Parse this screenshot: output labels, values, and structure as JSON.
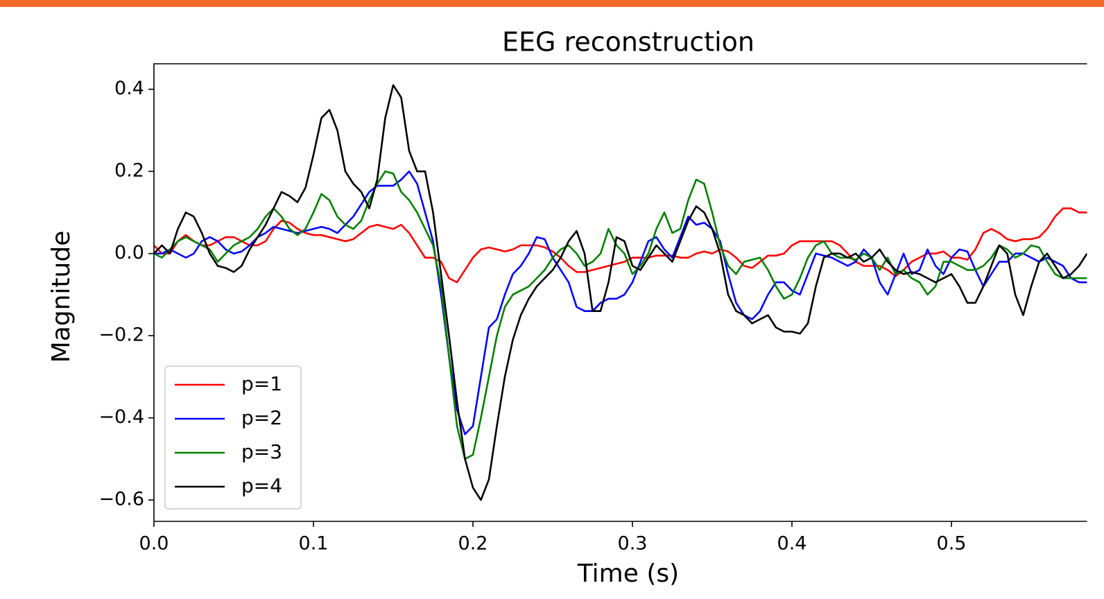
{
  "chart_data": {
    "type": "line",
    "title": "EEG reconstruction",
    "xlabel": "Time (s)",
    "ylabel": "Magnitude",
    "x": [
      0,
      0.005,
      0.01,
      0.015,
      0.02,
      0.025,
      0.03,
      0.035,
      0.04,
      0.045,
      0.05,
      0.055,
      0.06,
      0.065,
      0.07,
      0.075,
      0.08,
      0.085,
      0.09,
      0.095,
      0.1,
      0.105,
      0.11,
      0.115,
      0.12,
      0.125,
      0.13,
      0.135,
      0.14,
      0.145,
      0.15,
      0.155,
      0.16,
      0.165,
      0.17,
      0.175,
      0.18,
      0.185,
      0.19,
      0.195,
      0.2,
      0.205,
      0.21,
      0.215,
      0.22,
      0.225,
      0.23,
      0.235,
      0.24,
      0.245,
      0.25,
      0.255,
      0.26,
      0.265,
      0.27,
      0.275,
      0.28,
      0.285,
      0.29,
      0.295,
      0.3,
      0.305,
      0.31,
      0.315,
      0.32,
      0.325,
      0.33,
      0.335,
      0.34,
      0.345,
      0.35,
      0.355,
      0.36,
      0.365,
      0.37,
      0.375,
      0.38,
      0.385,
      0.39,
      0.395,
      0.4,
      0.405,
      0.41,
      0.415,
      0.42,
      0.425,
      0.43,
      0.435,
      0.44,
      0.445,
      0.45,
      0.455,
      0.46,
      0.465,
      0.47,
      0.475,
      0.48,
      0.485,
      0.49,
      0.495,
      0.5,
      0.505,
      0.51,
      0.515,
      0.52,
      0.525,
      0.53,
      0.535,
      0.54,
      0.545,
      0.55,
      0.555,
      0.56,
      0.565,
      0.57,
      0.575,
      0.58,
      0.585
    ],
    "series": [
      {
        "name": "p=1",
        "color": "#ff0000",
        "values": [
          0.02,
          0.0,
          0.0,
          0.03,
          0.045,
          0.03,
          0.02,
          0.02,
          0.03,
          0.04,
          0.04,
          0.03,
          0.02,
          0.02,
          0.03,
          0.06,
          0.08,
          0.075,
          0.06,
          0.05,
          0.045,
          0.045,
          0.04,
          0.035,
          0.03,
          0.035,
          0.05,
          0.065,
          0.07,
          0.065,
          0.06,
          0.07,
          0.05,
          0.02,
          -0.01,
          -0.01,
          -0.02,
          -0.06,
          -0.07,
          -0.04,
          -0.01,
          0.01,
          0.015,
          0.01,
          0.005,
          0.01,
          0.02,
          0.02,
          0.02,
          0.015,
          0.005,
          -0.01,
          -0.03,
          -0.045,
          -0.045,
          -0.04,
          -0.035,
          -0.03,
          -0.025,
          -0.02,
          -0.01,
          -0.01,
          -0.01,
          -0.005,
          -0.005,
          -0.005,
          -0.01,
          -0.01,
          0.0,
          0.005,
          0.0,
          0.01,
          0.005,
          -0.01,
          -0.03,
          -0.035,
          -0.02,
          -0.005,
          -0.005,
          0.0,
          0.02,
          0.03,
          0.03,
          0.03,
          0.03,
          0.03,
          0.02,
          0.0,
          -0.02,
          -0.03,
          -0.03,
          -0.03,
          -0.04,
          -0.055,
          -0.04,
          -0.02,
          -0.01,
          0.0,
          0.0,
          0.005,
          -0.01,
          -0.01,
          -0.015,
          0.01,
          0.05,
          0.06,
          0.05,
          0.035,
          0.03,
          0.035,
          0.035,
          0.04,
          0.06,
          0.09,
          0.11,
          0.11,
          0.1,
          0.1
        ]
      },
      {
        "name": "p=2",
        "color": "#0000ff",
        "values": [
          0.0,
          0.0,
          0.01,
          0.0,
          -0.01,
          0.0,
          0.03,
          0.04,
          0.03,
          0.01,
          0.0,
          0.005,
          0.02,
          0.04,
          0.05,
          0.065,
          0.06,
          0.055,
          0.05,
          0.055,
          0.06,
          0.065,
          0.06,
          0.05,
          0.07,
          0.09,
          0.12,
          0.15,
          0.165,
          0.165,
          0.165,
          0.18,
          0.2,
          0.17,
          0.1,
          0.03,
          -0.1,
          -0.25,
          -0.38,
          -0.44,
          -0.42,
          -0.3,
          -0.18,
          -0.16,
          -0.1,
          -0.05,
          -0.03,
          0.0,
          0.04,
          0.035,
          -0.01,
          -0.04,
          -0.07,
          -0.13,
          -0.14,
          -0.14,
          -0.12,
          -0.11,
          -0.11,
          -0.1,
          -0.07,
          -0.02,
          0.03,
          0.04,
          0.01,
          -0.01,
          0.04,
          0.09,
          0.07,
          0.075,
          0.06,
          0.03,
          -0.05,
          -0.12,
          -0.15,
          -0.16,
          -0.14,
          -0.1,
          -0.07,
          -0.07,
          -0.09,
          -0.1,
          -0.05,
          0.0,
          -0.005,
          -0.01,
          -0.02,
          -0.03,
          -0.02,
          0.01,
          -0.01,
          -0.07,
          -0.1,
          -0.05,
          0.0,
          -0.05,
          -0.04,
          0.01,
          -0.03,
          -0.05,
          -0.01,
          0.01,
          0.005,
          -0.04,
          -0.08,
          -0.05,
          -0.02,
          -0.02,
          0.0,
          0.0,
          -0.01,
          -0.02,
          -0.01,
          -0.02,
          -0.03,
          -0.06,
          -0.07,
          -0.07
        ]
      },
      {
        "name": "p=3",
        "color": "#008000",
        "values": [
          0.0,
          -0.01,
          0.01,
          0.03,
          0.04,
          0.03,
          0.02,
          0.01,
          -0.02,
          0.0,
          0.02,
          0.03,
          0.04,
          0.06,
          0.09,
          0.11,
          0.09,
          0.06,
          0.045,
          0.06,
          0.1,
          0.145,
          0.13,
          0.09,
          0.07,
          0.06,
          0.08,
          0.13,
          0.17,
          0.2,
          0.195,
          0.15,
          0.13,
          0.1,
          0.06,
          0.02,
          -0.08,
          -0.25,
          -0.42,
          -0.5,
          -0.49,
          -0.4,
          -0.3,
          -0.2,
          -0.13,
          -0.1,
          -0.09,
          -0.08,
          -0.06,
          -0.04,
          -0.01,
          0.01,
          0.02,
          0.0,
          -0.03,
          -0.02,
          0.0,
          0.06,
          0.02,
          0.0,
          -0.05,
          -0.03,
          0.0,
          0.06,
          0.1,
          0.05,
          0.06,
          0.13,
          0.18,
          0.17,
          0.1,
          0.02,
          -0.03,
          -0.05,
          -0.02,
          -0.015,
          -0.01,
          -0.04,
          -0.08,
          -0.11,
          -0.1,
          -0.06,
          -0.01,
          0.02,
          0.03,
          0.0,
          -0.01,
          -0.01,
          -0.015,
          0.0,
          -0.01,
          -0.04,
          -0.01,
          -0.05,
          -0.04,
          -0.06,
          -0.07,
          -0.1,
          -0.08,
          -0.02,
          -0.02,
          -0.03,
          -0.04,
          -0.04,
          -0.03,
          -0.01,
          0.02,
          0.01,
          -0.01,
          0.0,
          0.02,
          0.015,
          -0.02,
          -0.05,
          -0.06,
          -0.06,
          -0.06,
          -0.06
        ]
      },
      {
        "name": "p=4",
        "color": "#000000",
        "values": [
          0.0,
          0.02,
          0.0,
          0.06,
          0.1,
          0.09,
          0.05,
          0.0,
          -0.03,
          -0.035,
          -0.045,
          -0.03,
          0.01,
          0.04,
          0.07,
          0.11,
          0.15,
          0.14,
          0.125,
          0.16,
          0.24,
          0.33,
          0.35,
          0.3,
          0.2,
          0.17,
          0.15,
          0.11,
          0.18,
          0.33,
          0.41,
          0.38,
          0.25,
          0.2,
          0.2,
          0.1,
          -0.05,
          -0.2,
          -0.36,
          -0.5,
          -0.57,
          -0.6,
          -0.55,
          -0.42,
          -0.3,
          -0.21,
          -0.15,
          -0.11,
          -0.08,
          -0.06,
          -0.04,
          -0.01,
          0.03,
          0.055,
          0.0,
          -0.14,
          -0.14,
          -0.07,
          0.04,
          0.03,
          -0.03,
          -0.04,
          -0.01,
          0.02,
          0.0,
          -0.02,
          0.03,
          0.08,
          0.115,
          0.1,
          0.06,
          0.0,
          -0.1,
          -0.14,
          -0.15,
          -0.17,
          -0.16,
          -0.15,
          -0.18,
          -0.19,
          -0.19,
          -0.195,
          -0.17,
          -0.08,
          -0.01,
          0.0,
          0.0,
          -0.01,
          0.0,
          -0.02,
          -0.01,
          0.01,
          -0.02,
          -0.04,
          -0.05,
          -0.045,
          -0.05,
          -0.06,
          -0.07,
          -0.06,
          -0.05,
          -0.08,
          -0.12,
          -0.12,
          -0.08,
          -0.03,
          0.02,
          0.0,
          -0.1,
          -0.15,
          -0.08,
          -0.02,
          0.0,
          -0.03,
          -0.06,
          -0.05,
          -0.03,
          0.0
        ]
      }
    ],
    "xlim": [
      0,
      0.585
    ],
    "ylim": [
      -0.652,
      0.462
    ],
    "xticks": [
      {
        "value": 0,
        "label": "0.0"
      },
      0.1,
      0.2,
      0.3,
      0.4,
      0.5
    ],
    "yticks": [
      {
        "value": -0.6,
        "label": "−0.6"
      },
      {
        "value": -0.4,
        "label": "−0.4"
      },
      {
        "value": -0.2,
        "label": "−0.2"
      },
      {
        "value": 0,
        "label": "0.0"
      },
      0.2,
      0.4
    ],
    "legend": "lower left",
    "grid": false
  }
}
